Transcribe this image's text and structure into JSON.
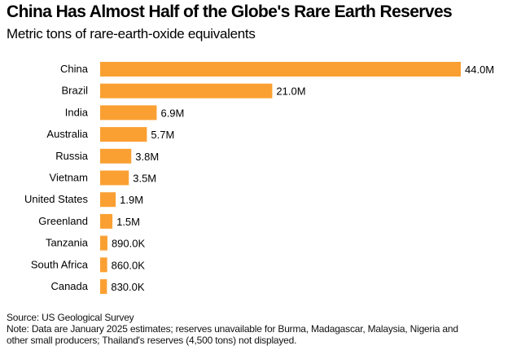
{
  "chart_data": {
    "type": "bar",
    "orientation": "horizontal",
    "title": "China Has Almost Half of the Globe's Rare Earth Reserves",
    "subtitle": "Metric tons of rare-earth-oxide equivalents",
    "categories": [
      "China",
      "Brazil",
      "India",
      "Australia",
      "Russia",
      "Vietnam",
      "United States",
      "Greenland",
      "Tanzania",
      "South Africa",
      "Canada"
    ],
    "values": [
      44000000,
      21000000,
      6900000,
      5700000,
      3800000,
      3500000,
      1900000,
      1500000,
      890000,
      860000,
      830000
    ],
    "labels": [
      "44.0M",
      "21.0M",
      "6.9M",
      "5.7M",
      "3.8M",
      "3.5M",
      "1.9M",
      "1.5M",
      "890.0K",
      "860.0K",
      "830.0K"
    ],
    "xlim": [
      0,
      44000000
    ],
    "grid": false,
    "bar_color": "#FAA032",
    "xlabel": "",
    "ylabel": ""
  },
  "footer": {
    "source": "Source: US Geological Survey",
    "note_line1": "Note: Data are January 2025 estimates; reserves unavailable for Burma, Madagascar, Malaysia, Nigeria and",
    "note_line2": "other small producers; Thailand's reserves (4,500 tons) not displayed."
  }
}
